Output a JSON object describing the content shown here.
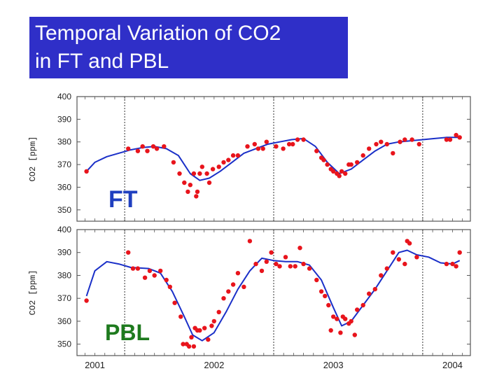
{
  "title": {
    "line1": "Temporal Variation of CO2",
    "line2": "in FT and PBL"
  },
  "colors": {
    "title_bg": "#2f2fc8",
    "title_text": "#ffffff",
    "points": "#e8141c",
    "curve": "#1a2fc8",
    "ft_label": "#1f3fbf",
    "pbl_label": "#1e7a1e"
  },
  "chart_data": [
    {
      "type": "scatter",
      "panel_label": "FT",
      "ylabel": "CO2 [ppm]",
      "ylim": [
        345,
        400
      ],
      "yticks": [
        350,
        360,
        370,
        380,
        390,
        400
      ],
      "xlim": [
        2000.85,
        2004.15
      ],
      "year_ticks": [
        {
          "x": 2001.0,
          "label": "2001"
        },
        {
          "x": 2002.0,
          "label": "2002"
        },
        {
          "x": 2003.0,
          "label": "2003"
        },
        {
          "x": 2004.0,
          "label": "2004"
        }
      ],
      "year_dividers": [
        2001.25,
        2002.5,
        2003.75
      ],
      "grid": false,
      "points": [
        [
          2000.93,
          367
        ],
        [
          2001.28,
          377
        ],
        [
          2001.36,
          376
        ],
        [
          2001.4,
          378
        ],
        [
          2001.44,
          376
        ],
        [
          2001.49,
          378
        ],
        [
          2001.52,
          377
        ],
        [
          2001.58,
          378
        ],
        [
          2001.66,
          371
        ],
        [
          2001.71,
          366
        ],
        [
          2001.75,
          362
        ],
        [
          2001.78,
          358
        ],
        [
          2001.8,
          361
        ],
        [
          2001.83,
          366
        ],
        [
          2001.85,
          356
        ],
        [
          2001.86,
          358
        ],
        [
          2001.88,
          366
        ],
        [
          2001.9,
          369
        ],
        [
          2001.94,
          366
        ],
        [
          2001.96,
          362
        ],
        [
          2001.99,
          368
        ],
        [
          2002.04,
          369
        ],
        [
          2002.08,
          371
        ],
        [
          2002.12,
          372
        ],
        [
          2002.16,
          374
        ],
        [
          2002.2,
          374
        ],
        [
          2002.28,
          378
        ],
        [
          2002.34,
          379
        ],
        [
          2002.37,
          377
        ],
        [
          2002.41,
          377
        ],
        [
          2002.44,
          380
        ],
        [
          2002.52,
          378
        ],
        [
          2002.58,
          377
        ],
        [
          2002.63,
          379
        ],
        [
          2002.66,
          379
        ],
        [
          2002.7,
          381
        ],
        [
          2002.75,
          381
        ],
        [
          2002.86,
          376
        ],
        [
          2002.9,
          373
        ],
        [
          2002.92,
          372
        ],
        [
          2002.95,
          370
        ],
        [
          2002.98,
          368
        ],
        [
          2003.0,
          367
        ],
        [
          2003.03,
          366
        ],
        [
          2003.05,
          365
        ],
        [
          2003.07,
          367
        ],
        [
          2003.1,
          366
        ],
        [
          2003.13,
          370
        ],
        [
          2003.15,
          370
        ],
        [
          2003.2,
          371
        ],
        [
          2003.25,
          374
        ],
        [
          2003.3,
          377
        ],
        [
          2003.36,
          379
        ],
        [
          2003.4,
          380
        ],
        [
          2003.45,
          379
        ],
        [
          2003.5,
          375
        ],
        [
          2003.56,
          380
        ],
        [
          2003.6,
          381
        ],
        [
          2003.66,
          381
        ],
        [
          2003.72,
          379
        ],
        [
          2003.95,
          381
        ],
        [
          2003.98,
          381
        ],
        [
          2004.03,
          383
        ],
        [
          2004.06,
          382
        ]
      ],
      "curve": [
        [
          2000.93,
          367
        ],
        [
          2001.0,
          371
        ],
        [
          2001.1,
          373.5
        ],
        [
          2001.2,
          375
        ],
        [
          2001.3,
          376.5
        ],
        [
          2001.4,
          377.5
        ],
        [
          2001.5,
          378
        ],
        [
          2001.6,
          377
        ],
        [
          2001.7,
          374
        ],
        [
          2001.8,
          366
        ],
        [
          2001.88,
          363
        ],
        [
          2001.96,
          364
        ],
        [
          2002.05,
          367
        ],
        [
          2002.15,
          371
        ],
        [
          2002.25,
          375
        ],
        [
          2002.35,
          377
        ],
        [
          2002.45,
          379
        ],
        [
          2002.55,
          380
        ],
        [
          2002.65,
          381
        ],
        [
          2002.75,
          381.5
        ],
        [
          2002.85,
          378
        ],
        [
          2002.95,
          371
        ],
        [
          2003.05,
          366
        ],
        [
          2003.15,
          368
        ],
        [
          2003.25,
          372
        ],
        [
          2003.35,
          376
        ],
        [
          2003.45,
          379
        ],
        [
          2003.55,
          380
        ],
        [
          2003.65,
          380.5
        ],
        [
          2003.75,
          381
        ],
        [
          2003.85,
          381.5
        ],
        [
          2003.95,
          382
        ],
        [
          2004.06,
          382
        ]
      ]
    },
    {
      "type": "scatter",
      "panel_label": "PBL",
      "ylabel": "CO2 [ppm]",
      "ylim": [
        345,
        400
      ],
      "yticks": [
        350,
        360,
        370,
        380,
        390,
        400
      ],
      "xlim": [
        2000.85,
        2004.15
      ],
      "year_ticks": [
        {
          "x": 2001.0,
          "label": "2001"
        },
        {
          "x": 2002.0,
          "label": "2002"
        },
        {
          "x": 2003.0,
          "label": "2003"
        },
        {
          "x": 2004.0,
          "label": "2004"
        }
      ],
      "year_dividers": [
        2001.25,
        2002.5,
        2003.75
      ],
      "grid": false,
      "points": [
        [
          2000.93,
          369
        ],
        [
          2001.28,
          390
        ],
        [
          2001.32,
          383
        ],
        [
          2001.36,
          383
        ],
        [
          2001.42,
          379
        ],
        [
          2001.46,
          382
        ],
        [
          2001.5,
          380
        ],
        [
          2001.55,
          382
        ],
        [
          2001.6,
          378
        ],
        [
          2001.63,
          375
        ],
        [
          2001.67,
          368
        ],
        [
          2001.72,
          362
        ],
        [
          2001.74,
          350
        ],
        [
          2001.77,
          350
        ],
        [
          2001.79,
          349
        ],
        [
          2001.81,
          353
        ],
        [
          2001.83,
          349
        ],
        [
          2001.84,
          357
        ],
        [
          2001.86,
          356
        ],
        [
          2001.88,
          356
        ],
        [
          2001.92,
          357
        ],
        [
          2001.95,
          352
        ],
        [
          2001.98,
          358
        ],
        [
          2002.0,
          360
        ],
        [
          2002.04,
          364
        ],
        [
          2002.08,
          370
        ],
        [
          2002.12,
          373
        ],
        [
          2002.16,
          376
        ],
        [
          2002.2,
          381
        ],
        [
          2002.25,
          375
        ],
        [
          2002.3,
          395
        ],
        [
          2002.35,
          385
        ],
        [
          2002.4,
          382
        ],
        [
          2002.44,
          386
        ],
        [
          2002.48,
          390
        ],
        [
          2002.52,
          385
        ],
        [
          2002.55,
          384
        ],
        [
          2002.6,
          388
        ],
        [
          2002.64,
          384
        ],
        [
          2002.68,
          384
        ],
        [
          2002.72,
          392
        ],
        [
          2002.75,
          385
        ],
        [
          2002.8,
          383
        ],
        [
          2002.86,
          378
        ],
        [
          2002.9,
          373
        ],
        [
          2002.93,
          371
        ],
        [
          2002.96,
          367
        ],
        [
          2002.98,
          356
        ],
        [
          2003.0,
          362
        ],
        [
          2003.03,
          361
        ],
        [
          2003.06,
          355
        ],
        [
          2003.08,
          362
        ],
        [
          2003.1,
          361
        ],
        [
          2003.13,
          359
        ],
        [
          2003.15,
          360
        ],
        [
          2003.18,
          354
        ],
        [
          2003.2,
          365
        ],
        [
          2003.25,
          367
        ],
        [
          2003.3,
          372
        ],
        [
          2003.35,
          374
        ],
        [
          2003.4,
          380
        ],
        [
          2003.45,
          383
        ],
        [
          2003.5,
          390
        ],
        [
          2003.55,
          387
        ],
        [
          2003.6,
          385
        ],
        [
          2003.62,
          395
        ],
        [
          2003.64,
          394
        ],
        [
          2003.7,
          388
        ],
        [
          2003.95,
          385
        ],
        [
          2004.0,
          385
        ],
        [
          2004.03,
          384
        ],
        [
          2004.06,
          390
        ]
      ],
      "curve": [
        [
          2000.93,
          371
        ],
        [
          2001.0,
          382
        ],
        [
          2001.1,
          386
        ],
        [
          2001.2,
          385
        ],
        [
          2001.3,
          383.5
        ],
        [
          2001.45,
          383
        ],
        [
          2001.55,
          381
        ],
        [
          2001.65,
          373
        ],
        [
          2001.75,
          362
        ],
        [
          2001.82,
          354
        ],
        [
          2001.9,
          351.5
        ],
        [
          2002.0,
          355
        ],
        [
          2002.1,
          364
        ],
        [
          2002.2,
          374
        ],
        [
          2002.3,
          382
        ],
        [
          2002.4,
          387.5
        ],
        [
          2002.5,
          386.5
        ],
        [
          2002.6,
          386
        ],
        [
          2002.7,
          386
        ],
        [
          2002.8,
          384.5
        ],
        [
          2002.9,
          378
        ],
        [
          2003.0,
          366
        ],
        [
          2003.07,
          358
        ],
        [
          2003.15,
          360
        ],
        [
          2003.25,
          367
        ],
        [
          2003.35,
          374
        ],
        [
          2003.45,
          382
        ],
        [
          2003.55,
          390
        ],
        [
          2003.62,
          391
        ],
        [
          2003.7,
          389
        ],
        [
          2003.8,
          388
        ],
        [
          2003.9,
          385.5
        ],
        [
          2004.0,
          385
        ],
        [
          2004.06,
          386.5
        ]
      ]
    }
  ]
}
